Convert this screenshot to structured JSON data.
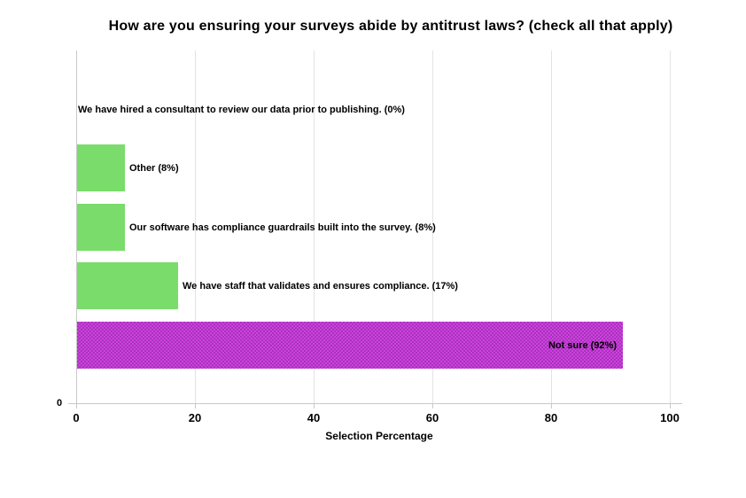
{
  "chart_data": {
    "type": "bar",
    "orientation": "horizontal",
    "title": "How are you ensuring your surveys abide by antitrust laws? (check all that apply)",
    "xlabel": "Selection Percentage",
    "ylabel": "",
    "xlim": [
      0,
      100
    ],
    "x_ticks": [
      0,
      20,
      40,
      60,
      80,
      100
    ],
    "y_zero_label": "0",
    "grid": "vertical-only",
    "legend": false,
    "categories": [
      "We have hired a consultant to review our data prior to publishing.",
      "Other",
      "Our software has compliance guardrails built into the survey.",
      "We have staff that validates and ensures compliance.",
      "Not sure"
    ],
    "values": [
      0,
      8,
      8,
      17,
      92
    ],
    "bars": [
      {
        "label": "We have hired a consultant to review our data prior to publishing. (0%)",
        "value": 0,
        "color": null,
        "pattern": false,
        "label_position": "outside"
      },
      {
        "label": "Other (8%)",
        "value": 8,
        "color": "#7adc6b",
        "pattern": false,
        "label_position": "outside"
      },
      {
        "label": "Our software has compliance guardrails built into the survey. (8%)",
        "value": 8,
        "color": "#7adc6b",
        "pattern": false,
        "label_position": "outside"
      },
      {
        "label": "We have staff that validates and ensures compliance. (17%)",
        "value": 17,
        "color": "#7adc6b",
        "pattern": false,
        "label_position": "outside"
      },
      {
        "label": "Not sure (92%)",
        "value": 92,
        "color": "#c53bd3",
        "pattern": true,
        "pattern_colors": [
          "#ce42dc",
          "#a832be"
        ],
        "label_position": "inside"
      }
    ],
    "colors": {
      "green_bar": "#7adc6b",
      "purple_bar": "#c53bd3",
      "gridline": "#e3e3e3",
      "axis_line": "#c9c9c9",
      "text": "#000000"
    }
  }
}
